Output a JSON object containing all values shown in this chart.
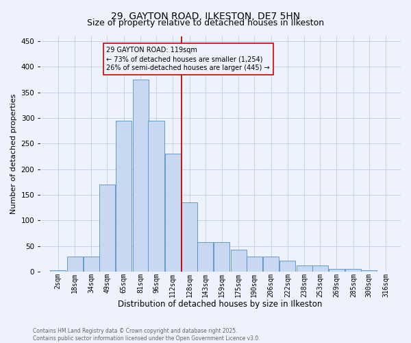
{
  "title": "29, GAYTON ROAD, ILKESTON, DE7 5HN",
  "subtitle": "Size of property relative to detached houses in Ilkeston",
  "xlabel": "Distribution of detached houses by size in Ilkeston",
  "ylabel": "Number of detached properties",
  "footnote1": "Contains HM Land Registry data © Crown copyright and database right 2025.",
  "footnote2": "Contains public sector information licensed under the Open Government Licence v3.0.",
  "annotation_line1": "29 GAYTON ROAD: 119sqm",
  "annotation_line2": "← 73% of detached houses are smaller (1,254)",
  "annotation_line3": "26% of semi-detached houses are larger (445) →",
  "bar_color": "#c8d8f0",
  "bar_edge_color": "#5090c8",
  "ref_line_color": "#cc0000",
  "categories": [
    "2sqm",
    "18sqm",
    "34sqm",
    "49sqm",
    "65sqm",
    "81sqm",
    "96sqm",
    "112sqm",
    "128sqm",
    "143sqm",
    "159sqm",
    "175sqm",
    "190sqm",
    "206sqm",
    "222sqm",
    "238sqm",
    "253sqm",
    "269sqm",
    "285sqm",
    "300sqm",
    "316sqm"
  ],
  "values": [
    3,
    30,
    30,
    170,
    295,
    375,
    295,
    230,
    135,
    58,
    58,
    43,
    30,
    30,
    22,
    12,
    12,
    5,
    5,
    3,
    0
  ],
  "bin_width": 16,
  "bin_starts": [
    2,
    18,
    34,
    49,
    65,
    81,
    96,
    112,
    128,
    143,
    159,
    175,
    190,
    206,
    222,
    238,
    253,
    269,
    285,
    300,
    316
  ],
  "ylim": [
    0,
    460
  ],
  "yticks": [
    0,
    50,
    100,
    150,
    200,
    250,
    300,
    350,
    400,
    450
  ],
  "bg_color": "#eef2fc",
  "grid_color": "#c8d0e8",
  "title_fontsize": 10,
  "subtitle_fontsize": 9,
  "ylabel_fontsize": 8,
  "xlabel_fontsize": 8.5,
  "tick_fontsize": 7,
  "footnote_fontsize": 5.5
}
